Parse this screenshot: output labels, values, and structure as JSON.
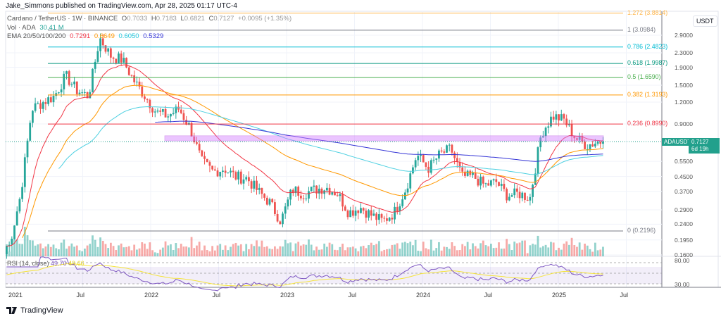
{
  "header": {
    "publisher": "Jake_Simmons published on TradingView.com, Apr 28, 2025 01:17 UTC-4"
  },
  "legend": {
    "symbol": "Cardano / TetherUS · 1W · BINANCE",
    "open_label": "O",
    "open": "0.7033",
    "high_label": "H",
    "high": "0.7183",
    "low_label": "L",
    "low": "0.6821",
    "close_label": "C",
    "close": "0.7127",
    "change": "+0.0095 (+1.35%)",
    "vol_label": "Vol · ADA",
    "vol": "30.41 M",
    "ema_label": "EMA 20/50/100/200",
    "ema_values": [
      "0.7291",
      "0.6649",
      "0.6050",
      "0.5329"
    ]
  },
  "rsi": {
    "label": "RSI (14, close)",
    "value": "49.70",
    "ma": "49.66",
    "ticks": [
      "80.00",
      "30.00"
    ]
  },
  "price_axis": {
    "currency": "USDT",
    "ticks": [
      "2.9000",
      "2.3000",
      "1.9000",
      "1.5000",
      "1.2000",
      "0.9000",
      "0.5500",
      "0.4500",
      "0.3700",
      "0.2900",
      "0.2400",
      "0.1950",
      "0.1600"
    ],
    "symbol_badge": "ADAUSDT",
    "last_price": "0.7127",
    "countdown": "6d 19h"
  },
  "time_axis": [
    "2021",
    "Jul",
    "2022",
    "Jul",
    "2023",
    "Jul",
    "2024",
    "Jul",
    "2025",
    "Jul"
  ],
  "fib_levels": [
    {
      "label": "1.272 (3.8814)",
      "price": 3.8814,
      "color": "#ffb74d"
    },
    {
      "label": "1 (3.0984)",
      "price": 3.0984,
      "color": "#787b86"
    },
    {
      "label": "0.786 (2.4823)",
      "price": 2.4823,
      "color": "#00bcd4"
    },
    {
      "label": "0.618 (1.9987)",
      "price": 1.9987,
      "color": "#089981"
    },
    {
      "label": "0.5 (1.6590)",
      "price": 1.659,
      "color": "#4caf50"
    },
    {
      "label": "0.382 (1.3193)",
      "price": 1.3193,
      "color": "#ff9800"
    },
    {
      "label": "0.236 (0.8990)",
      "price": 0.899,
      "color": "#f23645"
    },
    {
      "label": "0 (0.2196)",
      "price": 0.2196,
      "color": "#787b86"
    }
  ],
  "colors": {
    "up": "#26a69a",
    "down": "#ef5350",
    "ema20": "#f23645",
    "ema50": "#ff9800",
    "ema100": "#4dd0e1",
    "ema200": "#3535d6",
    "rsi": "#7e57c2",
    "rsi_ma": "#f5e43a",
    "zone": "#d580ff",
    "badge": "#22a08c"
  },
  "chart_data": {
    "type": "candlestick",
    "scale": "log",
    "ylim": [
      0.16,
      3.9
    ],
    "monthly_closes": {
      "dates": [
        "2020-12",
        "2021-01",
        "2021-02",
        "2021-03",
        "2021-04",
        "2021-05",
        "2021-06",
        "2021-07",
        "2021-08",
        "2021-09",
        "2021-10",
        "2021-11",
        "2021-12",
        "2022-01",
        "2022-02",
        "2022-03",
        "2022-04",
        "2022-05",
        "2022-06",
        "2022-07",
        "2022-08",
        "2022-09",
        "2022-10",
        "2022-11",
        "2022-12",
        "2023-01",
        "2023-02",
        "2023-03",
        "2023-04",
        "2023-05",
        "2023-06",
        "2023-07",
        "2023-08",
        "2023-09",
        "2023-10",
        "2023-11",
        "2023-12",
        "2024-01",
        "2024-02",
        "2024-03",
        "2024-04",
        "2024-05",
        "2024-06",
        "2024-07",
        "2024-08",
        "2024-09",
        "2024-10",
        "2024-11",
        "2024-12",
        "2025-01",
        "2025-02",
        "2025-03",
        "2025-04"
      ],
      "values": [
        0.18,
        0.35,
        1.1,
        1.2,
        1.3,
        1.7,
        1.4,
        1.3,
        2.8,
        2.2,
        2.1,
        1.6,
        1.3,
        1.05,
        1.0,
        1.1,
        0.85,
        0.55,
        0.48,
        0.5,
        0.45,
        0.44,
        0.37,
        0.32,
        0.25,
        0.38,
        0.36,
        0.38,
        0.39,
        0.36,
        0.28,
        0.3,
        0.27,
        0.25,
        0.28,
        0.38,
        0.6,
        0.5,
        0.6,
        0.65,
        0.45,
        0.45,
        0.4,
        0.42,
        0.35,
        0.36,
        0.34,
        0.8,
        1.0,
        0.95,
        0.75,
        0.68,
        0.7127
      ]
    },
    "zone": [
      0.72,
      0.77
    ]
  }
}
